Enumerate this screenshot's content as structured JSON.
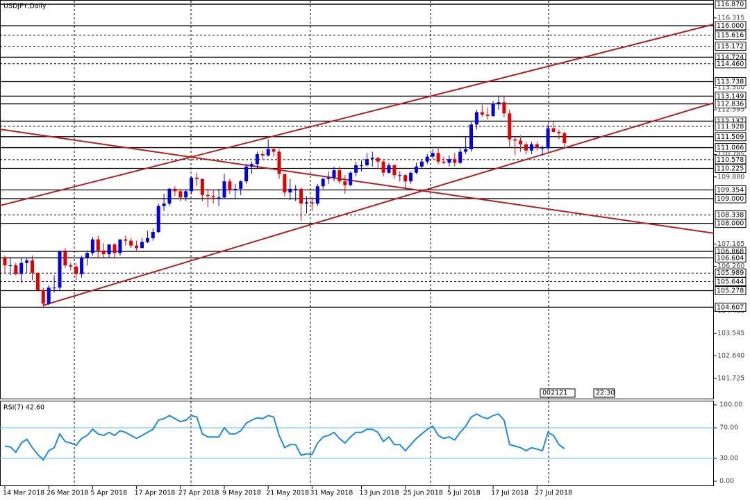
{
  "chart_data": [
    {
      "type": "candlestick",
      "title": "USDJPY,Daily",
      "categories": [
        "14 Mar 2018",
        null,
        null,
        null,
        null,
        null,
        null,
        null,
        "26 Mar 2018",
        null,
        null,
        null,
        null,
        null,
        null,
        null,
        "5 Apr 2018",
        null,
        null,
        null,
        null,
        null,
        null,
        null,
        "17 Apr 2018",
        null,
        null,
        null,
        null,
        null,
        null,
        null,
        "27 Apr 2018",
        null,
        null,
        null,
        null,
        null,
        null,
        null,
        "9 May 2018",
        null,
        null,
        null,
        null,
        null,
        null,
        null,
        "21 May 2018",
        null,
        null,
        null,
        null,
        null,
        null,
        null,
        "31 May 2018",
        null,
        null,
        null,
        null,
        null,
        null,
        null,
        null,
        "13 Jun 2018",
        null,
        null,
        null,
        null,
        null,
        null,
        null,
        "25 Jun 2018",
        null,
        null,
        null,
        null,
        null,
        null,
        null,
        "5 Jul 2018",
        null,
        null,
        null,
        null,
        null,
        null,
        null,
        "17 Jul 2018",
        null,
        null,
        null,
        null,
        null,
        null,
        null,
        "27 Jul 2018",
        null,
        null,
        null,
        null,
        null
      ],
      "open": [
        106.6,
        106.3,
        106.3,
        105.95,
        106.4,
        106.5,
        106.0,
        105.3,
        104.75,
        105.4,
        105.4,
        106.85,
        106.3,
        106.25,
        105.95,
        106.6,
        106.8,
        107.35,
        106.9,
        106.75,
        107.15,
        106.8,
        107.35,
        107.3,
        107.1,
        107.0,
        107.25,
        107.4,
        107.65,
        108.7,
        108.8,
        109.4,
        109.3,
        109.05,
        109.3,
        109.85,
        109.8,
        109.15,
        109.1,
        109.05,
        109.05,
        109.7,
        109.35,
        109.4,
        109.7,
        110.3,
        110.4,
        110.8,
        110.75,
        111.0,
        110.9,
        110.0,
        109.25,
        109.4,
        109.4,
        108.8,
        108.85,
        108.8,
        109.5,
        109.8,
        109.85,
        110.15,
        109.7,
        109.55,
        110.05,
        110.35,
        110.35,
        110.6,
        110.65,
        110.5,
        110.05,
        110.35,
        109.95,
        109.95,
        109.7,
        110.05,
        110.3,
        110.5,
        110.7,
        110.85,
        110.5,
        110.45,
        110.6,
        110.45,
        110.9,
        111.0,
        112.0,
        112.5,
        112.4,
        112.35,
        112.85,
        112.9,
        112.45,
        111.4,
        111.35,
        111.2,
        110.95,
        111.2,
        111.05,
        111.05,
        111.85,
        111.7,
        111.65
      ],
      "high": [
        106.7,
        106.6,
        106.4,
        106.6,
        106.6,
        106.7,
        106.0,
        105.4,
        105.5,
        105.9,
        106.9,
        107.0,
        106.4,
        106.4,
        106.7,
        106.9,
        107.45,
        107.5,
        107.2,
        107.15,
        107.2,
        107.35,
        107.5,
        107.4,
        107.3,
        107.4,
        107.7,
        107.8,
        108.8,
        109.2,
        109.45,
        109.5,
        109.4,
        109.4,
        109.9,
        110.05,
        109.8,
        109.4,
        109.35,
        109.4,
        110.0,
        109.8,
        109.6,
        109.75,
        110.4,
        110.5,
        110.9,
        110.95,
        111.4,
        111.1,
        111.0,
        110.0,
        109.8,
        109.55,
        109.45,
        109.1,
        109.05,
        109.6,
        109.85,
        110.1,
        110.3,
        110.3,
        109.95,
        110.1,
        110.5,
        110.55,
        110.85,
        110.9,
        110.7,
        110.6,
        110.45,
        110.4,
        110.1,
        110.0,
        110.1,
        110.45,
        110.6,
        110.8,
        111.0,
        111.1,
        110.7,
        110.75,
        110.85,
        111.05,
        111.5,
        112.1,
        112.6,
        112.8,
        112.7,
        112.95,
        113.15,
        113.15,
        112.6,
        111.5,
        111.55,
        111.3,
        111.3,
        111.3,
        111.15,
        112.0,
        112.1,
        111.8,
        111.7
      ],
      "low": [
        106.0,
        105.9,
        105.9,
        105.6,
        106.0,
        105.7,
        105.25,
        104.63,
        104.7,
        105.2,
        105.3,
        106.2,
        106.1,
        105.7,
        105.8,
        106.3,
        106.7,
        106.6,
        106.6,
        106.6,
        106.6,
        106.7,
        107.1,
        107.0,
        106.9,
        107.0,
        107.2,
        107.3,
        107.6,
        108.5,
        108.7,
        109.1,
        108.9,
        108.9,
        109.2,
        109.5,
        108.9,
        108.65,
        108.8,
        108.7,
        109.0,
        109.2,
        109.0,
        109.15,
        109.6,
        110.0,
        110.2,
        110.6,
        110.7,
        110.7,
        109.8,
        109.1,
        108.95,
        108.9,
        108.1,
        108.4,
        108.5,
        108.7,
        109.4,
        109.6,
        109.7,
        109.6,
        109.2,
        109.5,
        109.9,
        110.1,
        110.3,
        110.3,
        110.2,
        109.9,
        110.0,
        109.8,
        109.7,
        109.4,
        109.6,
        110.0,
        110.2,
        110.4,
        110.6,
        110.4,
        110.4,
        110.3,
        110.3,
        110.4,
        110.8,
        110.9,
        111.8,
        112.3,
        112.2,
        112.3,
        112.6,
        112.3,
        111.1,
        110.75,
        110.9,
        110.8,
        110.8,
        110.95,
        110.75,
        110.95,
        111.7,
        111.4,
        111.1
      ],
      "close": [
        106.3,
        106.3,
        105.95,
        106.4,
        106.5,
        106.0,
        105.3,
        104.75,
        105.4,
        105.4,
        106.85,
        106.3,
        106.25,
        105.95,
        106.6,
        106.8,
        107.35,
        106.9,
        106.75,
        107.15,
        106.8,
        107.35,
        107.3,
        107.1,
        107.0,
        107.25,
        107.4,
        107.65,
        108.7,
        108.8,
        109.4,
        109.3,
        109.05,
        109.3,
        109.85,
        109.8,
        109.15,
        109.1,
        109.05,
        109.05,
        109.7,
        109.35,
        109.4,
        109.7,
        110.3,
        110.4,
        110.8,
        110.75,
        111.0,
        110.9,
        110.0,
        109.25,
        109.4,
        109.4,
        108.8,
        108.85,
        108.8,
        109.5,
        109.8,
        109.85,
        110.15,
        109.7,
        109.55,
        110.05,
        110.35,
        110.35,
        110.6,
        110.65,
        110.5,
        110.05,
        110.35,
        109.95,
        109.95,
        109.7,
        110.05,
        110.3,
        110.5,
        110.7,
        110.85,
        110.5,
        110.45,
        110.6,
        110.45,
        110.9,
        111.0,
        112.0,
        112.5,
        112.4,
        112.35,
        112.85,
        112.9,
        112.45,
        111.4,
        111.35,
        111.2,
        110.95,
        111.2,
        111.05,
        111.05,
        111.85,
        111.7,
        111.65,
        111.25
      ],
      "up_color": "#0000e0",
      "down_color": "#e00000",
      "ylim": [
        100.88,
        117.04
      ],
      "yticks": [
        {
          "value": 116.315,
          "label": "116.315"
        },
        {
          "value": 113.5,
          "label": "113.500"
        },
        {
          "value": 112.595,
          "label": "112.595"
        },
        {
          "value": 110.785,
          "label": "110.785"
        },
        {
          "value": 109.88,
          "label": "109.880"
        },
        {
          "value": 107.165,
          "label": "107.165"
        },
        {
          "value": 106.26,
          "label": "106.260"
        },
        {
          "value": 104.45,
          "label": "104.450"
        },
        {
          "value": 103.545,
          "label": "103.545"
        },
        {
          "value": 102.64,
          "label": "102.640"
        },
        {
          "value": 101.725,
          "label": "101.725"
        }
      ],
      "levels": [
        {
          "value": 116.87,
          "label": "116.870",
          "style": "solid"
        },
        {
          "value": 116,
          "label": "116.000",
          "style": "solid"
        },
        {
          "value": 115.616,
          "label": "115.616",
          "style": "dashed"
        },
        {
          "value": 115.172,
          "label": "115.172",
          "style": "dashed"
        },
        {
          "value": 114.724,
          "label": "114.724",
          "style": "solid"
        },
        {
          "value": 114.46,
          "label": "114.460",
          "style": "dashed"
        },
        {
          "value": 113.738,
          "label": "113.738",
          "style": "solid"
        },
        {
          "value": 113.149,
          "label": "113.149",
          "style": "solid"
        },
        {
          "value": 112.836,
          "label": "112.836",
          "style": "solid"
        },
        {
          "value": 112.137,
          "label": "112.137",
          "style": "solid"
        },
        {
          "value": 111.928,
          "label": "111.928",
          "style": "dashed"
        },
        {
          "value": 111.509,
          "label": "111.509",
          "style": "solid"
        },
        {
          "value": 111.066,
          "label": "111.066",
          "style": "solid"
        },
        {
          "value": 110.578,
          "label": "110.578",
          "style": "dashed"
        },
        {
          "value": 110.225,
          "label": "110.225",
          "style": "solid"
        },
        {
          "value": 109.354,
          "label": "109.354",
          "style": "solid"
        },
        {
          "value": 109,
          "label": "109.000",
          "style": "solid"
        },
        {
          "value": 108.338,
          "label": "108.338",
          "style": "dashed"
        },
        {
          "value": 108,
          "label": "108.000",
          "style": "solid"
        },
        {
          "value": 106.868,
          "label": "106.868",
          "style": "solid"
        },
        {
          "value": 106.604,
          "label": "106.604",
          "style": "solid"
        },
        {
          "value": 105.989,
          "label": "105.989",
          "style": "dashed"
        },
        {
          "value": 105.644,
          "label": "105.644",
          "style": "dashed"
        },
        {
          "value": 105.278,
          "label": "105.278",
          "style": "solid"
        },
        {
          "value": 104.607,
          "label": "104.607",
          "style": "solid"
        }
      ],
      "trendlines": [
        {
          "x": [
            -0.89,
            129.24
          ],
          "y": [
            108.72,
            116.06
          ]
        },
        {
          "x": [
            6.96,
            129.24
          ],
          "y": [
            104.68,
            112.88
          ]
        },
        {
          "x": [
            -0.89,
            129.24
          ],
          "y": [
            111.81,
            107.6
          ]
        }
      ],
      "trend_color": "#b02020",
      "counter": "002121",
      "clock": "22:30"
    },
    {
      "type": "line",
      "title": "RSI(7) 42.60",
      "color": "#1e88e5",
      "values": [
        46,
        45,
        38,
        50,
        55,
        44,
        35,
        28,
        40,
        44,
        62,
        52,
        50,
        47,
        56,
        60,
        68,
        62,
        60,
        64,
        60,
        66,
        64,
        60,
        56,
        60,
        64,
        68,
        80,
        82,
        86,
        82,
        78,
        80,
        86,
        84,
        62,
        58,
        58,
        58,
        70,
        62,
        62,
        66,
        76,
        80,
        83,
        82,
        86,
        84,
        60,
        44,
        48,
        48,
        34,
        36,
        35,
        50,
        58,
        60,
        64,
        56,
        50,
        58,
        64,
        64,
        68,
        68,
        64,
        52,
        58,
        48,
        48,
        40,
        48,
        56,
        62,
        68,
        72,
        60,
        56,
        58,
        54,
        64,
        72,
        84,
        88,
        84,
        82,
        86,
        88,
        80,
        48,
        46,
        44,
        40,
        44,
        42,
        40,
        64,
        60,
        48,
        42.6
      ],
      "ylim": [
        -6.36,
        105.45
      ],
      "yticks": [
        {
          "value": 100,
          "label": "100.00"
        },
        {
          "value": 70,
          "label": "70.00"
        },
        {
          "value": 30,
          "label": "30.00"
        },
        {
          "value": 0,
          "label": "0.00"
        }
      ],
      "levels": [
        70,
        30
      ],
      "level_color": "#4fc3f7"
    }
  ]
}
